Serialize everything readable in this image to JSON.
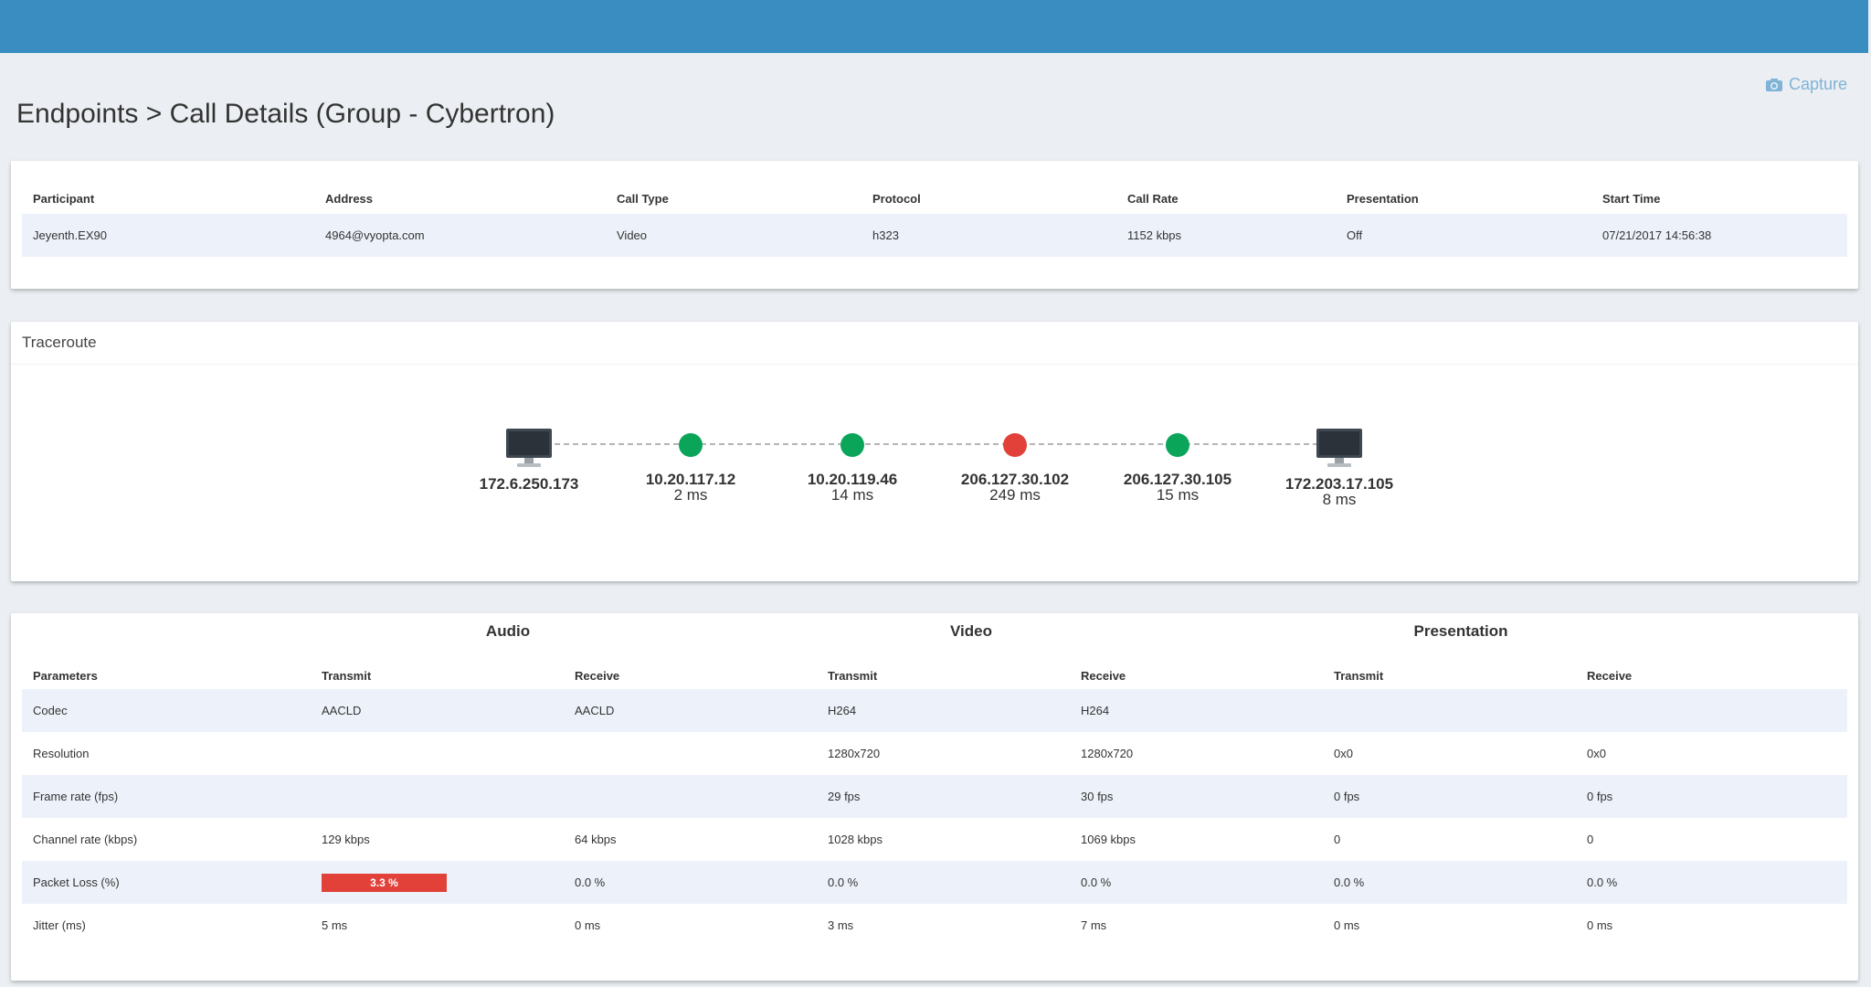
{
  "header": {
    "capture_label": "Capture",
    "capture_icon": "camera-icon"
  },
  "page_title": "Endpoints > Call Details (Group - Cybertron)",
  "participants": {
    "columns": [
      "Participant",
      "Address",
      "Call Type",
      "Protocol",
      "Call Rate",
      "Presentation",
      "Start Time"
    ],
    "rows": [
      [
        "Jeyenth.EX90",
        "4964@vyopta.com",
        "Video",
        "h323",
        "1152 kbps",
        "Off",
        "07/21/2017 14:56:38"
      ]
    ]
  },
  "traceroute": {
    "title": "Traceroute",
    "nodes": [
      {
        "kind": "endpoint",
        "icon": "monitor-icon",
        "ip": "172.6.250.173",
        "latency": ""
      },
      {
        "kind": "hop",
        "status": "good",
        "color": "#0ba55a",
        "ip": "10.20.117.12",
        "latency": "2 ms"
      },
      {
        "kind": "hop",
        "status": "good",
        "color": "#0ba55a",
        "ip": "10.20.119.46",
        "latency": "14 ms"
      },
      {
        "kind": "hop",
        "status": "bad",
        "color": "#e2413a",
        "ip": "206.127.30.102",
        "latency": "249 ms"
      },
      {
        "kind": "hop",
        "status": "good",
        "color": "#0ba55a",
        "ip": "206.127.30.105",
        "latency": "15 ms"
      },
      {
        "kind": "endpoint",
        "icon": "monitor-icon",
        "ip": "172.203.17.105",
        "latency": "8 ms"
      }
    ]
  },
  "stats": {
    "sections": {
      "audio": "Audio",
      "video": "Video",
      "presentation": "Presentation"
    },
    "columns": [
      "Parameters",
      "Transmit",
      "Receive",
      "Transmit",
      "Receive",
      "Transmit",
      "Receive"
    ],
    "rows": [
      [
        "Codec",
        "AACLD",
        "AACLD",
        "H264",
        "H264",
        "",
        ""
      ],
      [
        "Resolution",
        "",
        "",
        "1280x720",
        "1280x720",
        "0x0",
        "0x0"
      ],
      [
        "Frame rate (fps)",
        "",
        "",
        "29 fps",
        "30 fps",
        "0 fps",
        "0 fps"
      ],
      [
        "Channel rate (kbps)",
        "129 kbps",
        "64 kbps",
        "1028 kbps",
        "1069 kbps",
        "0",
        "0"
      ],
      [
        "Packet Loss (%)",
        "3.3 %",
        "0.0 %",
        "0.0 %",
        "0.0 %",
        "0.0 %",
        "0.0 %"
      ],
      [
        "Jitter (ms)",
        "5 ms",
        "0 ms",
        "3 ms",
        "7 ms",
        "0 ms",
        "0 ms"
      ]
    ],
    "highlight": {
      "row": 4,
      "col": 1,
      "color": "#e2413a"
    }
  }
}
